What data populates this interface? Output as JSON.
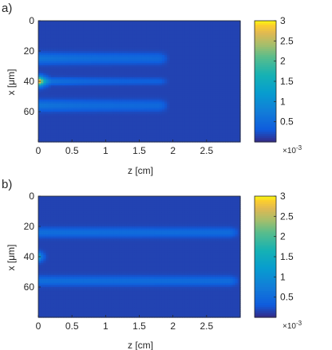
{
  "chart_data": [
    {
      "type": "heatmap",
      "panel_label": "a)",
      "xlabel": "z [cm]",
      "ylabel": "x [μm]",
      "xlim": [
        0,
        3
      ],
      "ylim": [
        80,
        0
      ],
      "xticks": [
        0,
        0.5,
        1,
        1.5,
        2,
        2.5
      ],
      "xtick_labels": [
        "0",
        "0.5",
        "1",
        "1.5",
        "2",
        "2.5"
      ],
      "yticks": [
        0,
        20,
        40,
        60
      ],
      "ytick_labels": [
        "0",
        "20",
        "40",
        "60"
      ],
      "colorbar": {
        "ticks": [
          0.5,
          1,
          1.5,
          2,
          2.5,
          3
        ],
        "tick_labels": [
          "0.5",
          "1",
          "1.5",
          "2",
          "2.5",
          "3"
        ],
        "range": [
          0,
          3
        ],
        "multiplier": "×10-3",
        "multiplier_base": "×10",
        "multiplier_exp": "-3"
      },
      "colormap": "parula",
      "features": [
        {
          "x_center": 40,
          "width": 2.2,
          "z_end": 0.2,
          "peak": 2.6,
          "floor": 0.0,
          "decay": 0.12
        },
        {
          "x_center": 25,
          "width": 2.3,
          "z_end": 1.95,
          "peak": 0.5,
          "floor": 0.3,
          "decay": 0.8
        },
        {
          "x_center": 40,
          "width": 1.5,
          "z_end": 1.95,
          "peak": 0.55,
          "floor": 0.2,
          "decay": 0.6
        },
        {
          "x_center": 56,
          "width": 2.3,
          "z_end": 1.95,
          "peak": 0.5,
          "floor": 0.3,
          "decay": 0.8
        }
      ]
    },
    {
      "type": "heatmap",
      "panel_label": "b)",
      "xlabel": "z [cm]",
      "ylabel": "x [μm]",
      "xlim": [
        0,
        3
      ],
      "ylim": [
        80,
        0
      ],
      "xticks": [
        0,
        0.5,
        1,
        1.5,
        2,
        2.5
      ],
      "xtick_labels": [
        "0",
        "0.5",
        "1",
        "1.5",
        "2",
        "2.5"
      ],
      "yticks": [
        0,
        20,
        40,
        60
      ],
      "ytick_labels": [
        "0",
        "20",
        "40",
        "60"
      ],
      "colorbar": {
        "ticks": [
          0.5,
          1,
          1.5,
          2,
          2.5,
          3
        ],
        "tick_labels": [
          "0.5",
          "1",
          "1.5",
          "2",
          "2.5",
          "3"
        ],
        "range": [
          0,
          3
        ],
        "multiplier": "×10-3",
        "multiplier_base": "×10",
        "multiplier_exp": "-3"
      },
      "colormap": "parula",
      "features": [
        {
          "x_center": 40,
          "width": 2.0,
          "z_end": 0.15,
          "peak": 1.4,
          "floor": 0.0,
          "decay": 0.08
        },
        {
          "x_center": 24,
          "width": 2.0,
          "z_end": 3.0,
          "peak": 0.4,
          "floor": 0.35,
          "decay": 2.0
        },
        {
          "x_center": 56,
          "width": 2.0,
          "z_end": 3.0,
          "peak": 0.4,
          "floor": 0.35,
          "decay": 2.0
        }
      ]
    }
  ]
}
